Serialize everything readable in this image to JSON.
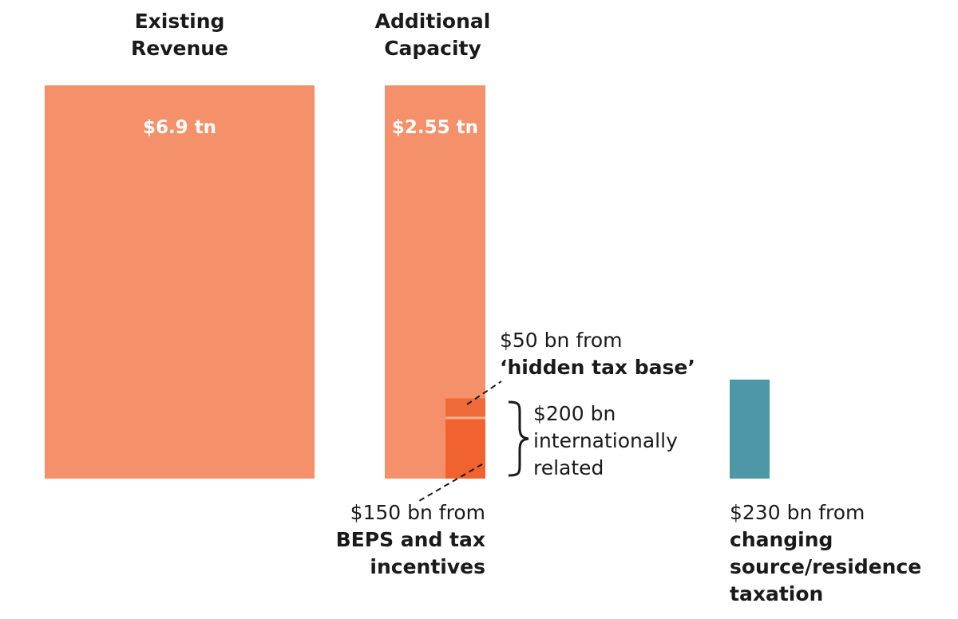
{
  "chart_data": {
    "type": "bar",
    "title": "",
    "categories": [
      "Existing Revenue",
      "Additional Capacity"
    ],
    "colors": {
      "main": "#f4916a",
      "beps": "#f0632e",
      "hidden": "#ef6a38",
      "separator": "#f7b093",
      "source_residence": "#4d97a6"
    },
    "bars": [
      {
        "name": "existing",
        "header": [
          "Existing",
          "Revenue"
        ],
        "value_tn": 6.9,
        "label": "$6.9 tn"
      },
      {
        "name": "additional",
        "header": [
          "Additional",
          "Capacity"
        ],
        "value_tn": 2.55,
        "label": "$2.55 tn"
      }
    ],
    "segments": {
      "hidden_tax_base": {
        "value_bn": 50,
        "label_line1": "$50 bn from",
        "label_line2": "‘hidden tax base’"
      },
      "beps": {
        "value_bn": 150,
        "label_line1": "$150 bn from",
        "label_line2": "BEPS and tax",
        "label_line3": "incentives"
      }
    },
    "bracket": {
      "value_bn": 200,
      "label_line1": "$200 bn",
      "label_line2": "internationally",
      "label_line3": "related"
    },
    "source_residence": {
      "value_bn": 230,
      "label_line1": "$230 bn from",
      "label_line2": "changing",
      "label_line3": "source/residence",
      "label_line4": "taxation"
    }
  }
}
